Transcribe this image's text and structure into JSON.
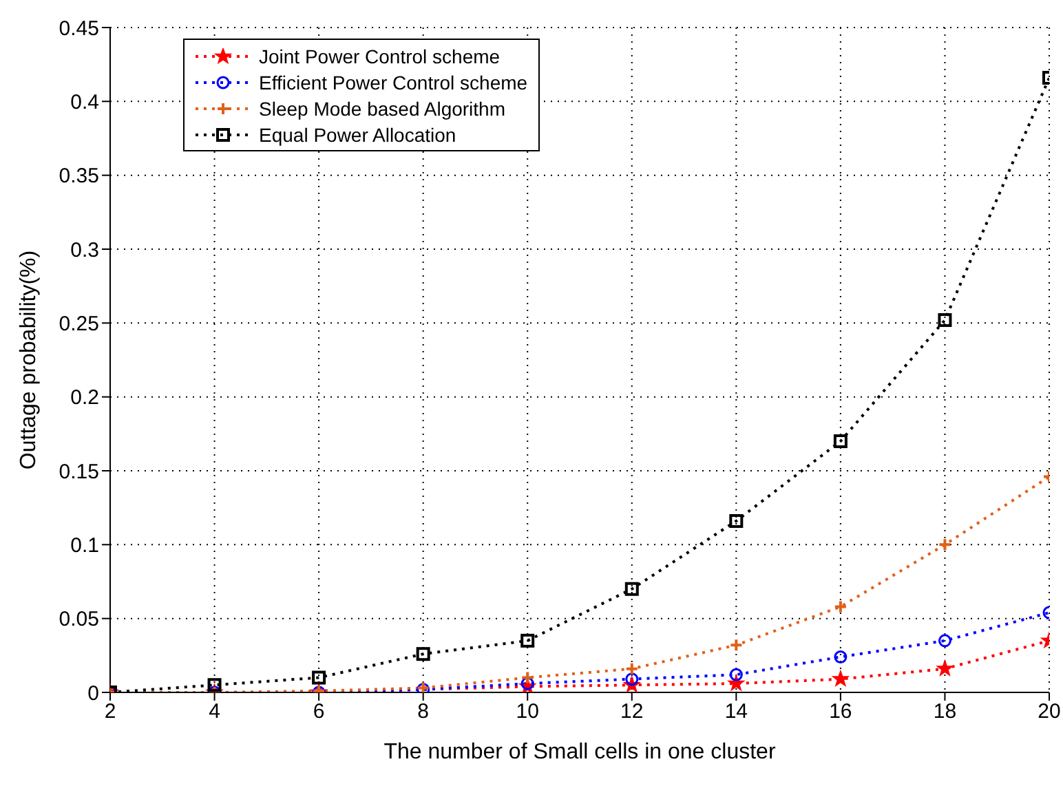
{
  "chart_data": {
    "type": "line",
    "xlabel": "The number of Small cells in one cluster",
    "ylabel": "Outtage probability(%)",
    "x": [
      2,
      4,
      6,
      8,
      10,
      12,
      14,
      16,
      18,
      20
    ],
    "series": [
      {
        "name": "Joint Power Control scheme",
        "color": "#ff0000",
        "marker": "star",
        "values": [
          0,
          0,
          0,
          null,
          0.004,
          0.005,
          0.006,
          0.009,
          0.016,
          0.035
        ]
      },
      {
        "name": "Efficient Power Control scheme",
        "color": "#0000ff",
        "marker": "circle",
        "values": [
          0,
          0,
          0,
          0.002,
          0.006,
          0.009,
          0.012,
          0.024,
          0.035,
          0.054
        ]
      },
      {
        "name": "Sleep Mode based Algorithm",
        "color": "#e0601a",
        "marker": "cross",
        "values": [
          0,
          0,
          0.001,
          0.003,
          0.01,
          0.016,
          0.032,
          0.058,
          0.1,
          0.146
        ]
      },
      {
        "name": "Equal Power Allocation",
        "color": "#000000",
        "marker": "square",
        "values": [
          0,
          0.005,
          0.01,
          0.026,
          0.035,
          0.07,
          0.116,
          0.17,
          0.252,
          0.416
        ]
      }
    ],
    "xlim": [
      2,
      20
    ],
    "xticks": [
      2,
      4,
      6,
      8,
      10,
      12,
      14,
      16,
      18,
      20
    ],
    "ylim": [
      0,
      0.45
    ],
    "yticks": [
      0,
      0.05,
      0.1,
      0.15,
      0.2,
      0.25,
      0.3,
      0.35,
      0.4,
      0.45
    ],
    "grid": true,
    "legend": "top left",
    "line_style": "dotted"
  }
}
